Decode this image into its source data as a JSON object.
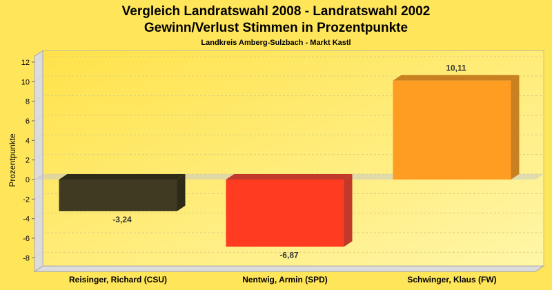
{
  "chart_data": {
    "type": "bar",
    "title": "Vergleich Landratswahl 2008 - Landratswahl 2002",
    "subtitle": "Gewinn/Verlust Stimmen in Prozentpunkte",
    "subsubtitle": "Landkreis Amberg-Sulzbach - Markt Kastl",
    "xlabel": "",
    "ylabel": "Prozentpunkte",
    "ylim": [
      -9.4,
      12.6
    ],
    "yticks": [
      12,
      10,
      8,
      6,
      4,
      2,
      0,
      -2,
      -4,
      -6,
      -8
    ],
    "grid": true,
    "categories": [
      "Reisinger, Richard (CSU)",
      "Nentwig, Armin (SPD)",
      "Schwinger, Klaus (FW)"
    ],
    "values": [
      -3.24,
      -6.87,
      10.11
    ],
    "value_labels": [
      "-3,24",
      "-6,87",
      "10,11"
    ],
    "colors": [
      "#403a22",
      "#ff3b22",
      "#ff9c22"
    ],
    "side_colors": [
      "#2e2a18",
      "#c0392b",
      "#c98020"
    ]
  }
}
